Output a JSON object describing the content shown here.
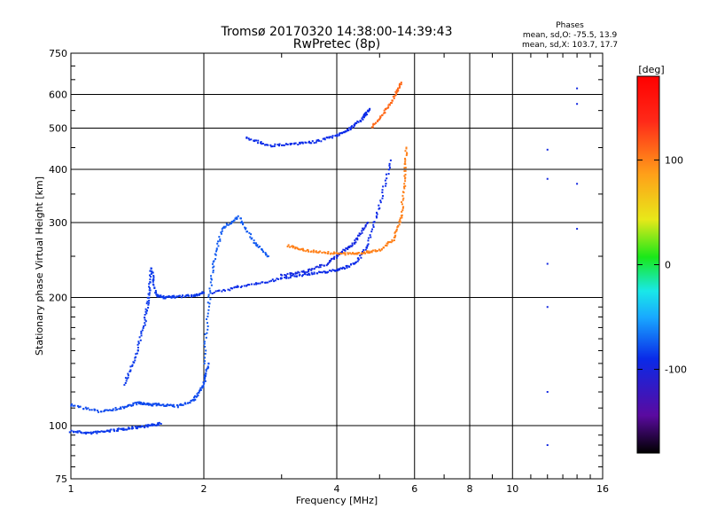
{
  "header": {
    "title_line1": "Tromsø 20170320 14:38:00-14:39:43",
    "title_line2": "RwPretec (8p)",
    "phase_heading": "Phases",
    "phase_line1": "mean, sd,O: -75.5, 13.9",
    "phase_line2": "mean, sd,X: 103.7, 17.7"
  },
  "chart_data": {
    "type": "scatter",
    "title": "Tromsø 20170320 14:38:00-14:39:43",
    "subtitle": "RwPretec (8p)",
    "xlabel": "Frequency [MHz]",
    "ylabel": "Stationary phase Virtual Height [km]",
    "xscale": "log",
    "yscale": "log",
    "xlim": [
      1,
      16
    ],
    "ylim": [
      75,
      750
    ],
    "xticks": [
      1,
      2,
      4,
      6,
      8,
      10,
      16
    ],
    "xtick_labels": [
      "1",
      "2",
      "4",
      "6",
      "8",
      "10",
      "16"
    ],
    "yticks": [
      75,
      100,
      200,
      300,
      400,
      500,
      600,
      750
    ],
    "ytick_labels": [
      "75",
      "100",
      "200",
      "300",
      "400",
      "500",
      "600",
      "750"
    ],
    "grid": true,
    "colorbar": {
      "label": "[deg]",
      "range": [
        -180,
        180
      ],
      "ticks": [
        100,
        0,
        -100
      ],
      "tick_labels": [
        "100",
        "0",
        "-100"
      ],
      "colors": [
        "#000000",
        "#5a0aa0",
        "#0a2ae8",
        "#19a8ff",
        "#19e8e8",
        "#19e819",
        "#e8e819",
        "#ffa019",
        "#ff2a19",
        "#ff0000"
      ]
    },
    "traces": [
      {
        "name": "",
        "phase": -85,
        "x": [
          1.0,
          1.1,
          1.2,
          1.3,
          1.4,
          1.5,
          1.6
        ],
        "y": [
          97,
          96,
          97,
          98,
          99,
          100,
          101
        ]
      },
      {
        "name": "",
        "phase": -80,
        "x": [
          1.0,
          1.15,
          1.3,
          1.42,
          1.5,
          1.6,
          1.75,
          1.9,
          2.0,
          2.05
        ],
        "y": [
          112,
          108,
          110,
          113,
          112,
          112,
          111,
          115,
          125,
          140
        ]
      },
      {
        "name": "",
        "phase": -85,
        "x": [
          1.32,
          1.4,
          1.47,
          1.5,
          1.52,
          1.56,
          1.62,
          1.75,
          1.9,
          2.0
        ],
        "y": [
          125,
          145,
          175,
          200,
          235,
          203,
          200,
          201,
          202,
          205
        ]
      },
      {
        "name": "",
        "phase": -75,
        "x": [
          2.0,
          2.05,
          2.1,
          2.2,
          2.4,
          2.6,
          2.8
        ],
        "y": [
          140,
          190,
          240,
          290,
          310,
          270,
          250
        ]
      },
      {
        "name": "",
        "phase": -90,
        "x": [
          2.1,
          2.4,
          2.8,
          3.2,
          3.6,
          4.0,
          4.4,
          4.7,
          5.0,
          5.3
        ],
        "y": [
          205,
          212,
          218,
          225,
          228,
          232,
          240,
          265,
          330,
          420
        ]
      },
      {
        "name": "",
        "phase": -95,
        "x": [
          3.0,
          3.4,
          3.8,
          4.1,
          4.4,
          4.7
        ],
        "y": [
          225,
          230,
          240,
          255,
          270,
          300
        ]
      },
      {
        "name": "",
        "phase": 100,
        "x": [
          3.1,
          3.4,
          3.8,
          4.2,
          4.6,
          5.0,
          5.4,
          5.6,
          5.7,
          5.75
        ],
        "y": [
          265,
          258,
          255,
          253,
          255,
          258,
          275,
          310,
          380,
          450
        ]
      },
      {
        "name": "",
        "phase": -90,
        "x": [
          2.5,
          2.8,
          3.2,
          3.6,
          4.0,
          4.3,
          4.6,
          4.75
        ],
        "y": [
          475,
          455,
          458,
          465,
          480,
          500,
          530,
          555
        ]
      },
      {
        "name": "",
        "phase": 110,
        "x": [
          4.8,
          5.1,
          5.4,
          5.6
        ],
        "y": [
          500,
          540,
          590,
          640
        ]
      },
      {
        "name": "",
        "phase": -95,
        "x": [
          12,
          12,
          12,
          12,
          12,
          12
        ],
        "y": [
          445,
          380,
          240,
          190,
          120,
          90
        ]
      },
      {
        "name": "",
        "phase": -95,
        "x": [
          14,
          14,
          14,
          14
        ],
        "y": [
          620,
          570,
          370,
          290
        ]
      }
    ]
  }
}
